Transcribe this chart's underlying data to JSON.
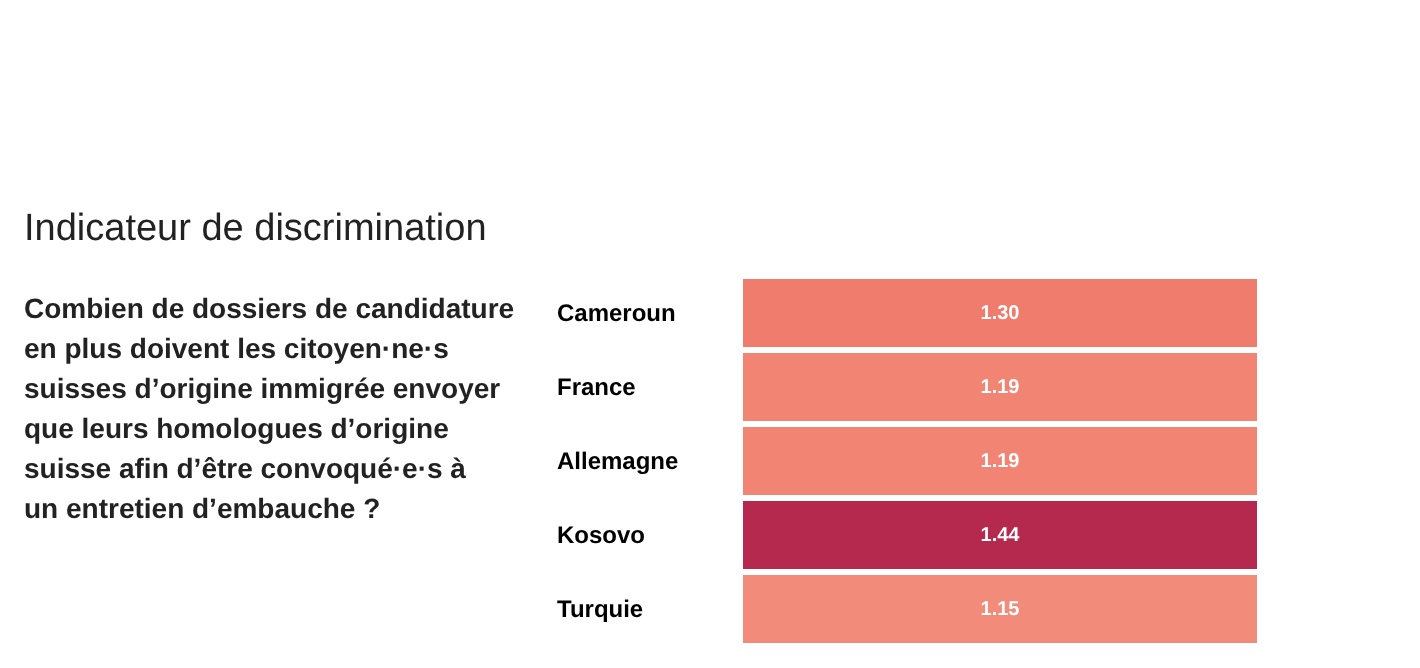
{
  "chart_data": {
    "type": "heatmap",
    "title": "Indicateur de discrimination",
    "subtitle": "Combien de dossiers de candidature en plus doivent les citoyen·ne·s suisses d’origine immigrée envoyer que leurs homologues d’origine suisse afin d’être convoqué·e·s à un entretien d’embauche ?",
    "categories": [
      null
    ],
    "y_categories": [
      "Cameroun",
      "France",
      "Allemagne",
      "Kosovo",
      "Turquie"
    ],
    "cells": [
      [
        1.3
      ],
      [
        1.19
      ],
      [
        1.19
      ],
      [
        1.44
      ],
      [
        1.15
      ]
    ],
    "cell_labels": [
      [
        "1.30"
      ],
      [
        "1.19"
      ],
      [
        "1.19"
      ],
      [
        "1.44"
      ],
      [
        "1.15"
      ]
    ],
    "colors": [
      "#e8505b",
      "#f07f6e",
      "#f07f6e",
      "#b5294e",
      "#f28b7a"
    ]
  }
}
